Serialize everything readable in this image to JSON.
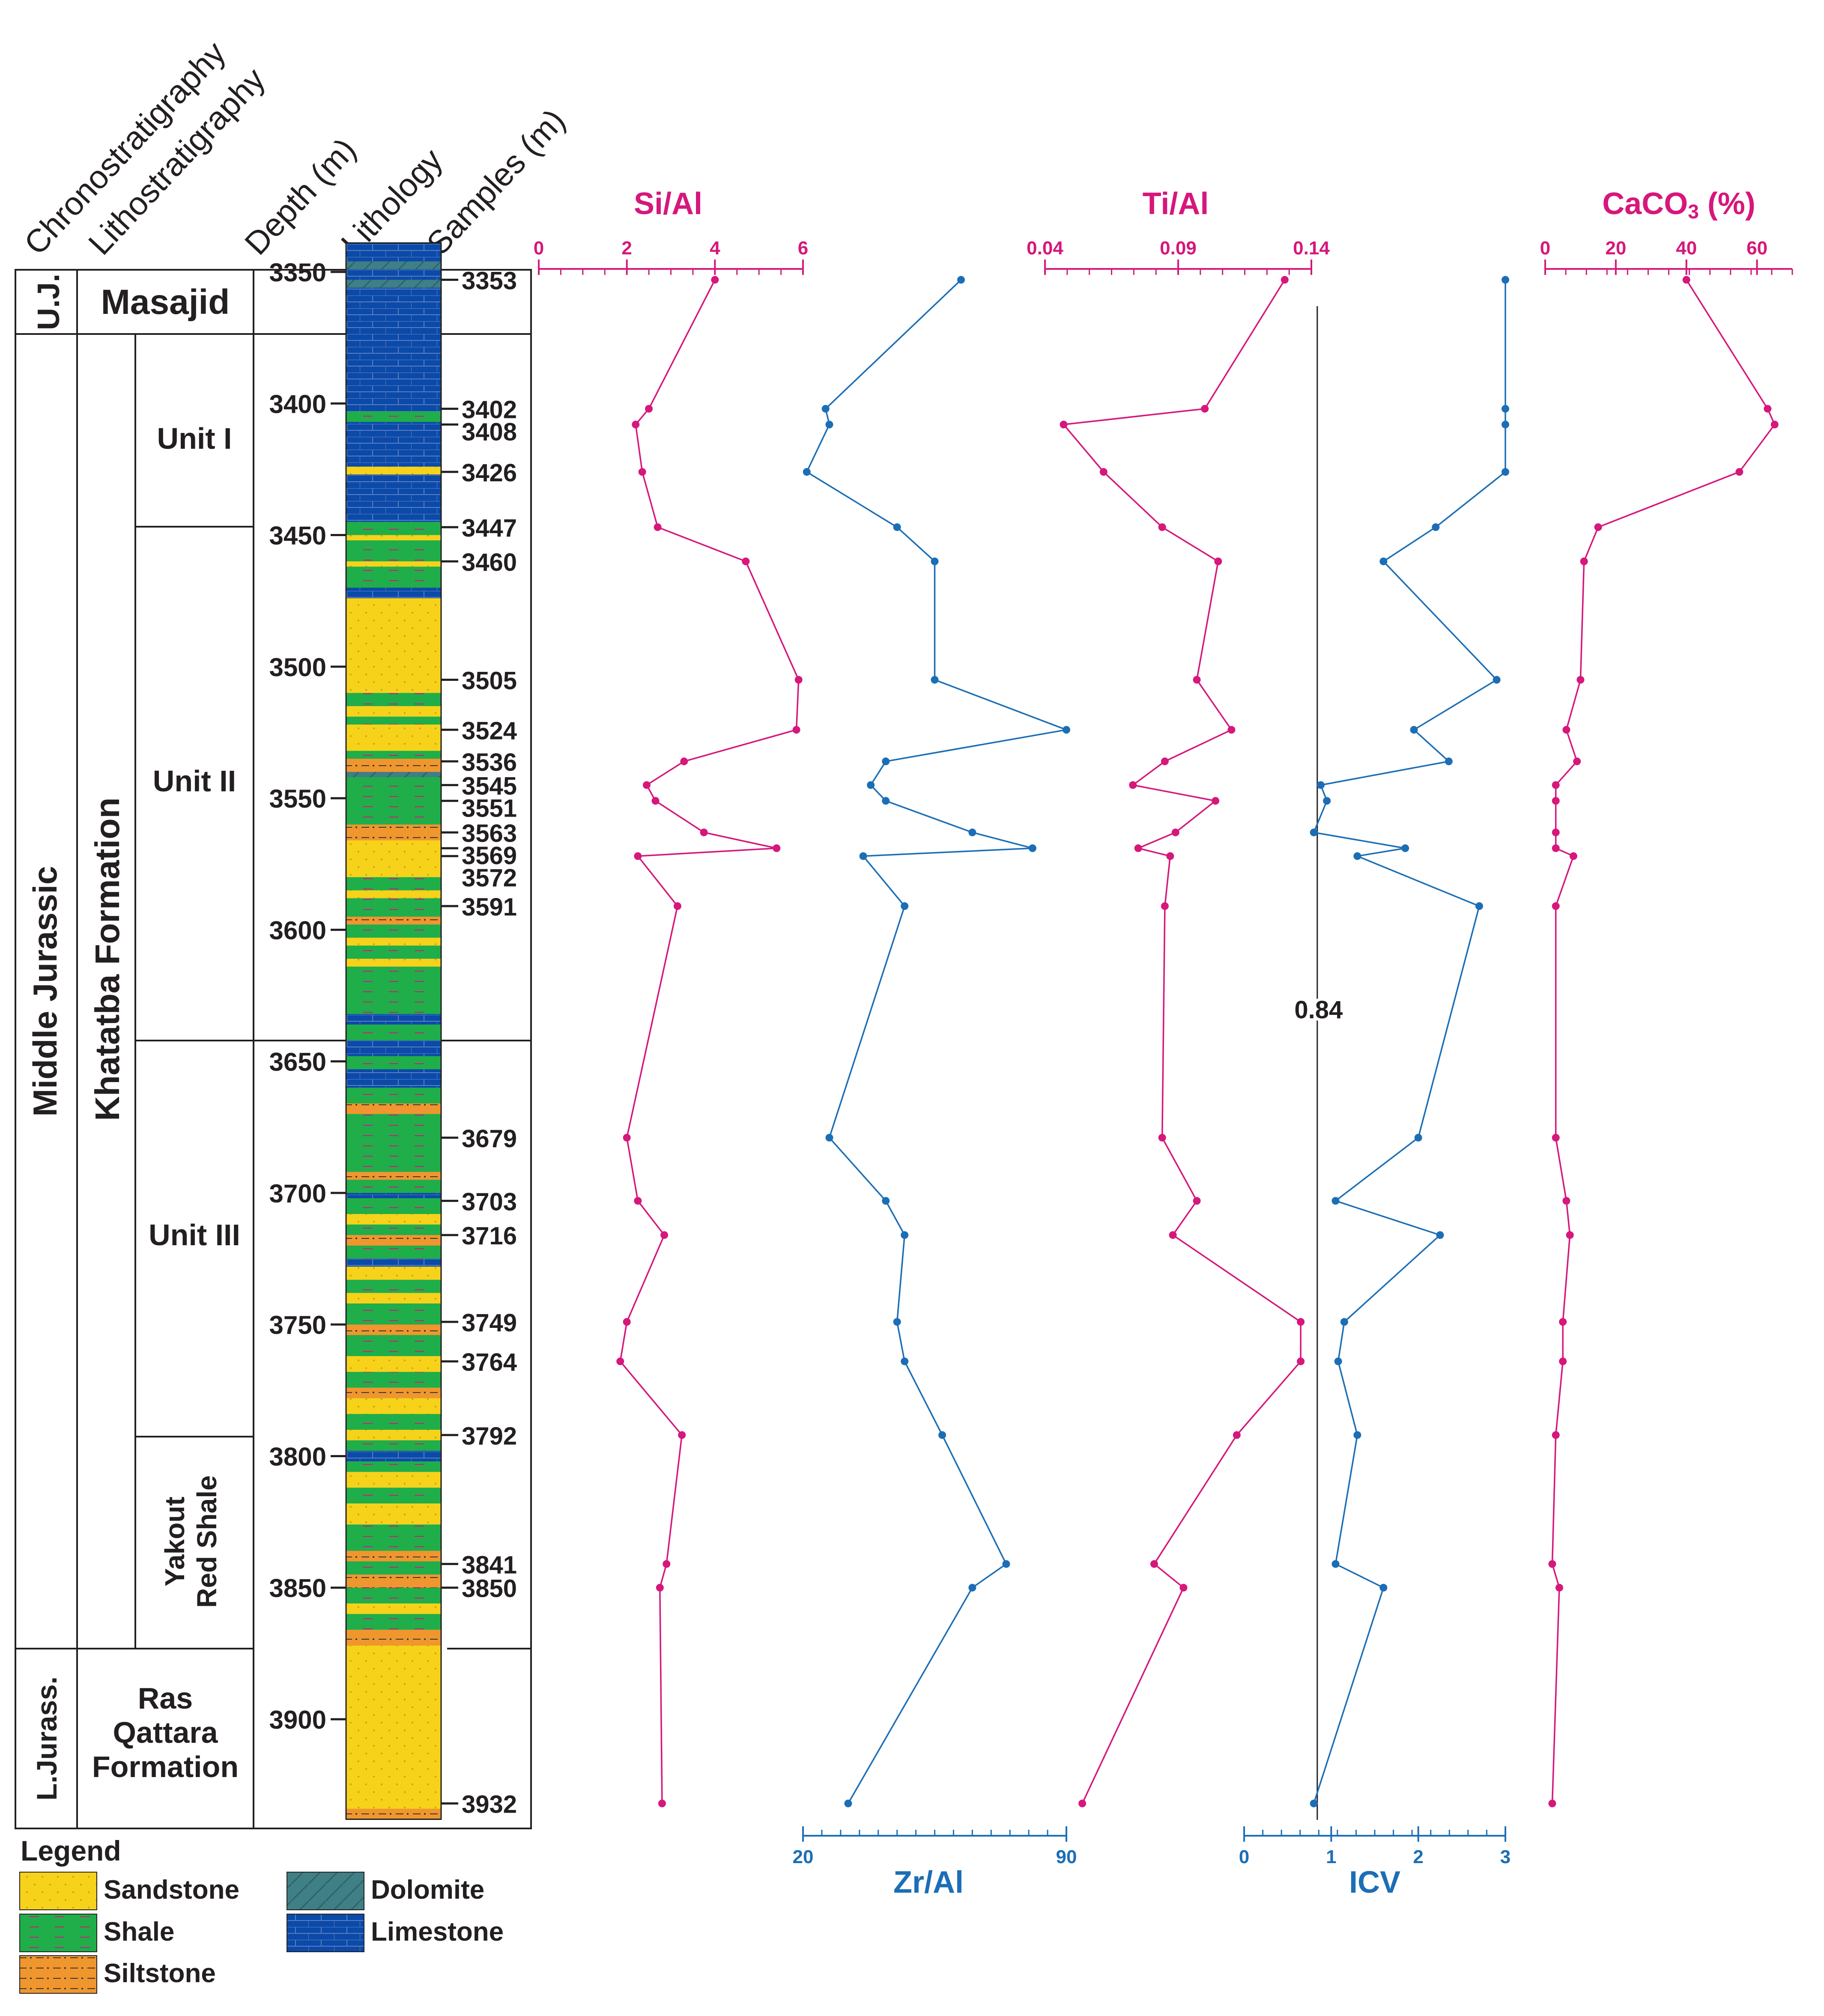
{
  "headers": {
    "chrono": "Chronostratigraphy",
    "litho": "Lithostratigraphy",
    "depth": "Depth (m)",
    "lithology": "Lithology",
    "samples": "Samples (m)"
  },
  "chrono_units": [
    {
      "label": "U.J.",
      "top": 3339,
      "bottom": 3362
    },
    {
      "label": "Middle Jurassic",
      "top": 3362,
      "bottom": 3872
    },
    {
      "label": "L.Jurass.",
      "top": 3872,
      "bottom": 3938
    }
  ],
  "formations": [
    {
      "label": "Masajid",
      "top": 3339,
      "bottom": 3362
    },
    {
      "label": "Khatatba Formation",
      "top": 3362,
      "bottom": 3872
    }
  ],
  "ras_qattara": {
    "line1": "Ras",
    "line2": "Qattara",
    "line3": "Formation"
  },
  "units": [
    {
      "label": "Unit I",
      "top": 3362,
      "bottom": 3435
    },
    {
      "label": "Unit II",
      "top": 3435,
      "bottom": 3628
    },
    {
      "label": "Unit III",
      "top": 3628,
      "bottom": 3778
    }
  ],
  "yakout": {
    "line1": "Yakout",
    "line2": "Red Shale"
  },
  "depth_ticks": [
    "3350",
    "3400",
    "3450",
    "3500",
    "3550",
    "3600",
    "3650",
    "3700",
    "3750",
    "3800",
    "3850",
    "3900"
  ],
  "sample_depths": [
    "3353",
    "3402",
    "3408",
    "3426",
    "3447",
    "3460",
    "3505",
    "3524",
    "3536",
    "3545",
    "3551",
    "3563",
    "3569",
    "3572",
    "3591",
    "3679",
    "3703",
    "3716",
    "3749",
    "3764",
    "3792",
    "3841",
    "3850",
    "3932"
  ],
  "lithology_legend": {
    "title": "Legend",
    "items": [
      {
        "name": "Sandstone",
        "color": "#f6d21b"
      },
      {
        "name": "Shale",
        "color": "#1fae4a"
      },
      {
        "name": "Siltstone",
        "color": "#f0962e"
      },
      {
        "name": "Dolomite",
        "color": "#3f7f86"
      },
      {
        "name": "Limestone",
        "color": "#0b4aa8"
      }
    ]
  },
  "colors": {
    "pink": "#d6177b",
    "blue": "#1b6eb6",
    "sandstone": "#f6d21b",
    "shale": "#1fae4a",
    "siltstone": "#f0962e",
    "dolomite": "#3f7f86",
    "limestone": "#0b4aa8"
  },
  "chart_data": [
    {
      "type": "line",
      "title": "Si/Al",
      "xlim": [
        0,
        6
      ],
      "ticks": [
        "0",
        "2",
        "4",
        "6"
      ],
      "depth": [
        3353,
        3402,
        3408,
        3426,
        3447,
        3460,
        3505,
        3524,
        3536,
        3545,
        3551,
        3563,
        3569,
        3572,
        3591,
        3679,
        3703,
        3716,
        3749,
        3764,
        3792,
        3841,
        3850,
        3932
      ],
      "values": [
        4.0,
        2.5,
        2.2,
        2.35,
        2.7,
        4.7,
        5.9,
        5.85,
        3.3,
        2.45,
        2.65,
        3.75,
        5.4,
        2.25,
        3.15,
        2.0,
        2.25,
        2.85,
        2.0,
        1.85,
        3.25,
        2.9,
        2.75,
        2.8
      ]
    },
    {
      "type": "line",
      "title": "Zr/Al",
      "xlim": [
        20,
        90
      ],
      "ticks": [
        "20",
        "90"
      ],
      "depth": [
        3353,
        3402,
        3408,
        3426,
        3447,
        3460,
        3505,
        3524,
        3536,
        3545,
        3551,
        3563,
        3569,
        3572,
        3591,
        3679,
        3703,
        3716,
        3749,
        3764,
        3792,
        3841,
        3850,
        3932
      ],
      "values": [
        62,
        26,
        27,
        21,
        45,
        55,
        55,
        90,
        42,
        38,
        42,
        65,
        81,
        36,
        47,
        27,
        42,
        47,
        45,
        47,
        57,
        74,
        65,
        32
      ]
    },
    {
      "type": "line",
      "title": "Ti/Al",
      "xlim": [
        0.04,
        0.14
      ],
      "ticks": [
        "0.04",
        "0.09",
        "0.14"
      ],
      "depth": [
        3353,
        3402,
        3408,
        3426,
        3447,
        3460,
        3505,
        3524,
        3536,
        3545,
        3551,
        3563,
        3569,
        3572,
        3591,
        3679,
        3703,
        3716,
        3749,
        3764,
        3792,
        3841,
        3850,
        3932
      ],
      "values": [
        0.13,
        0.1,
        0.047,
        0.062,
        0.084,
        0.105,
        0.097,
        0.11,
        0.085,
        0.073,
        0.104,
        0.089,
        0.075,
        0.087,
        0.085,
        0.084,
        0.097,
        0.088,
        0.136,
        0.136,
        0.112,
        0.081,
        0.092,
        0.054
      ]
    },
    {
      "type": "line",
      "title": "ICV",
      "xlim": [
        0,
        3
      ],
      "ticks": [
        "0",
        "1",
        "2",
        "3"
      ],
      "reference_line": 0.84,
      "reference_label": "0.84",
      "depth": [
        3353,
        3402,
        3408,
        3426,
        3447,
        3460,
        3505,
        3524,
        3536,
        3545,
        3551,
        3563,
        3569,
        3572,
        3591,
        3679,
        3703,
        3716,
        3749,
        3764,
        3792,
        3841,
        3850,
        3932
      ],
      "values": [
        3.0,
        3.0,
        3.0,
        3.0,
        2.2,
        1.6,
        2.9,
        1.95,
        2.35,
        0.88,
        0.95,
        0.8,
        1.85,
        1.3,
        2.7,
        2.0,
        1.05,
        2.25,
        1.15,
        1.08,
        1.3,
        1.05,
        1.6,
        0.8
      ]
    },
    {
      "type": "line",
      "title": "CaCO3 (%)",
      "xlim": [
        0,
        70
      ],
      "ticks": [
        "0",
        "20",
        "40",
        "60"
      ],
      "depth": [
        3353,
        3402,
        3408,
        3426,
        3447,
        3460,
        3505,
        3524,
        3536,
        3545,
        3551,
        3563,
        3569,
        3572,
        3591,
        3679,
        3703,
        3716,
        3749,
        3764,
        3792,
        3841,
        3850,
        3932
      ],
      "values": [
        40,
        63,
        65,
        55,
        15,
        11,
        10,
        6,
        9,
        3,
        3,
        3,
        3,
        8,
        3,
        3,
        6,
        7,
        5,
        5,
        3,
        2,
        4,
        2
      ]
    }
  ]
}
